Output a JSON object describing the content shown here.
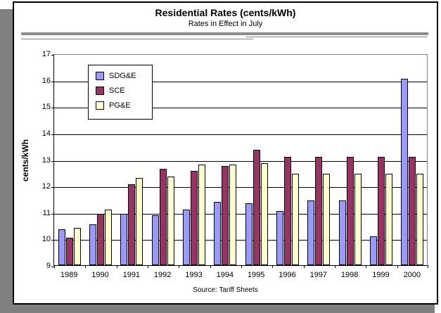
{
  "window": {
    "background_color": "#FFFFFF",
    "shadow_color": "#808080",
    "panel_border_color": "#000000"
  },
  "header": {
    "title": "Residential Rates (cents/kWh)",
    "subtitle": "Rates in Effect in July"
  },
  "footer": {
    "source": "Source: Tariff Sheets"
  },
  "chart_data": {
    "type": "bar",
    "title": "Residential Rates (cents/kWh)",
    "subtitle": "Rates in Effect in July",
    "xlabel": "",
    "ylabel": "cents/kWh",
    "ylim": [
      9,
      17
    ],
    "ytick_step": 1,
    "grid": true,
    "gridline_color": "#000000",
    "plot_border_color": "#808080",
    "legend_position": "upper-left-inside",
    "source": "Source: Tariff Sheets",
    "categories": [
      "1989",
      "1990",
      "1991",
      "1992",
      "1993",
      "1994",
      "1995",
      "1996",
      "1997",
      "1998",
      "1999",
      "2000"
    ],
    "series": [
      {
        "name": "SDG&E",
        "color": "#9999FF",
        "values": [
          10.35,
          10.55,
          10.95,
          10.9,
          11.1,
          11.4,
          11.35,
          11.05,
          11.45,
          11.45,
          10.1,
          16.05
        ]
      },
      {
        "name": "SCE",
        "color": "#993366",
        "values": [
          10.05,
          10.95,
          12.05,
          12.65,
          12.55,
          12.75,
          13.35,
          13.1,
          13.1,
          13.1,
          13.1,
          13.1
        ]
      },
      {
        "name": "PG&E",
        "color": "#FFFFCC",
        "values": [
          10.4,
          11.1,
          12.3,
          12.35,
          12.8,
          12.8,
          12.85,
          12.45,
          12.45,
          12.45,
          12.45,
          12.45
        ]
      }
    ]
  }
}
